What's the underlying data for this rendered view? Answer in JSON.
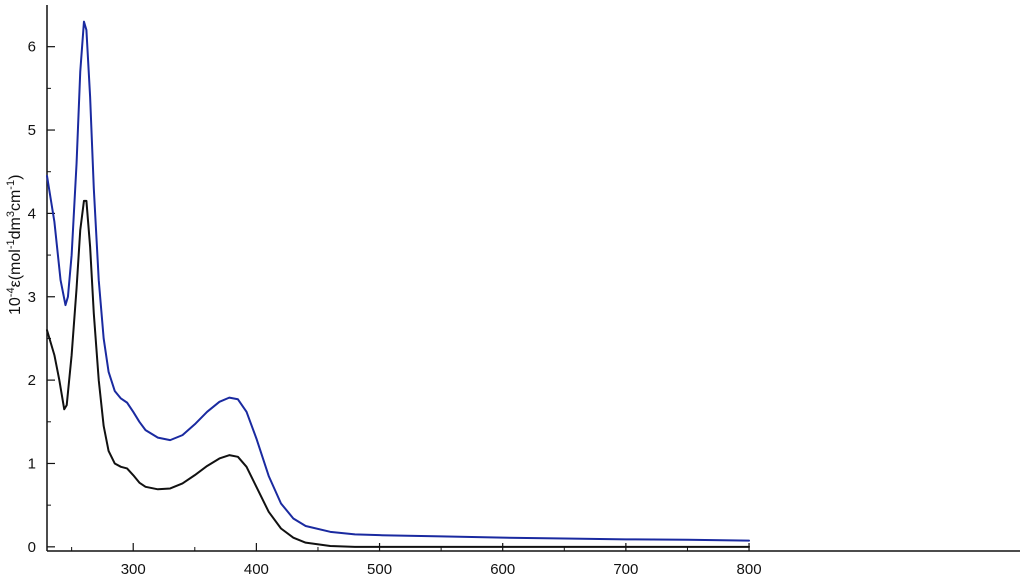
{
  "chart_data": {
    "type": "line",
    "title": "",
    "xlabel": "",
    "ylabel_parts": {
      "base": "10",
      "exp1": "-4",
      "mid1": "ε(mol",
      "exp2": "-1",
      "mid2": "dm",
      "exp3": "3",
      "mid3": "cm",
      "exp4": "-1",
      "end": ")"
    },
    "xlim": [
      230,
      1020
    ],
    "ylim": [
      -0.05,
      6.5
    ],
    "xticks": [
      300,
      400,
      500,
      600,
      700,
      800
    ],
    "yticks": [
      0,
      1,
      2,
      3,
      4,
      5,
      6
    ],
    "grid": false,
    "legend": "none",
    "series": [
      {
        "color": "#1a2aa0",
        "points": [
          [
            230,
            4.45
          ],
          [
            236,
            3.9
          ],
          [
            241,
            3.2
          ],
          [
            245,
            2.9
          ],
          [
            247,
            3.0
          ],
          [
            250,
            3.5
          ],
          [
            254,
            4.6
          ],
          [
            257,
            5.7
          ],
          [
            260,
            6.3
          ],
          [
            262,
            6.2
          ],
          [
            265,
            5.4
          ],
          [
            268,
            4.3
          ],
          [
            272,
            3.2
          ],
          [
            276,
            2.5
          ],
          [
            280,
            2.1
          ],
          [
            285,
            1.87
          ],
          [
            290,
            1.78
          ],
          [
            295,
            1.73
          ],
          [
            300,
            1.62
          ],
          [
            305,
            1.5
          ],
          [
            310,
            1.4
          ],
          [
            320,
            1.31
          ],
          [
            330,
            1.28
          ],
          [
            340,
            1.34
          ],
          [
            350,
            1.47
          ],
          [
            360,
            1.62
          ],
          [
            370,
            1.74
          ],
          [
            378,
            1.79
          ],
          [
            385,
            1.77
          ],
          [
            392,
            1.62
          ],
          [
            400,
            1.3
          ],
          [
            410,
            0.85
          ],
          [
            420,
            0.52
          ],
          [
            430,
            0.34
          ],
          [
            440,
            0.25
          ],
          [
            460,
            0.18
          ],
          [
            480,
            0.15
          ],
          [
            500,
            0.14
          ],
          [
            550,
            0.125
          ],
          [
            600,
            0.11
          ],
          [
            650,
            0.1
          ],
          [
            700,
            0.09
          ],
          [
            750,
            0.085
          ],
          [
            800,
            0.075
          ]
        ]
      },
      {
        "color": "#111111",
        "points": [
          [
            230,
            2.6
          ],
          [
            236,
            2.3
          ],
          [
            240,
            2.0
          ],
          [
            244,
            1.65
          ],
          [
            246,
            1.7
          ],
          [
            250,
            2.3
          ],
          [
            254,
            3.1
          ],
          [
            257,
            3.8
          ],
          [
            260,
            4.15
          ],
          [
            262,
            4.15
          ],
          [
            265,
            3.6
          ],
          [
            268,
            2.8
          ],
          [
            272,
            2.0
          ],
          [
            276,
            1.45
          ],
          [
            280,
            1.15
          ],
          [
            285,
            1.0
          ],
          [
            290,
            0.96
          ],
          [
            295,
            0.94
          ],
          [
            300,
            0.86
          ],
          [
            305,
            0.77
          ],
          [
            310,
            0.72
          ],
          [
            320,
            0.69
          ],
          [
            330,
            0.7
          ],
          [
            340,
            0.76
          ],
          [
            350,
            0.86
          ],
          [
            360,
            0.97
          ],
          [
            370,
            1.06
          ],
          [
            378,
            1.1
          ],
          [
            385,
            1.08
          ],
          [
            392,
            0.96
          ],
          [
            400,
            0.72
          ],
          [
            410,
            0.42
          ],
          [
            420,
            0.22
          ],
          [
            430,
            0.11
          ],
          [
            440,
            0.05
          ],
          [
            460,
            0.01
          ],
          [
            480,
            0.0
          ],
          [
            800,
            0.0
          ]
        ]
      }
    ]
  }
}
